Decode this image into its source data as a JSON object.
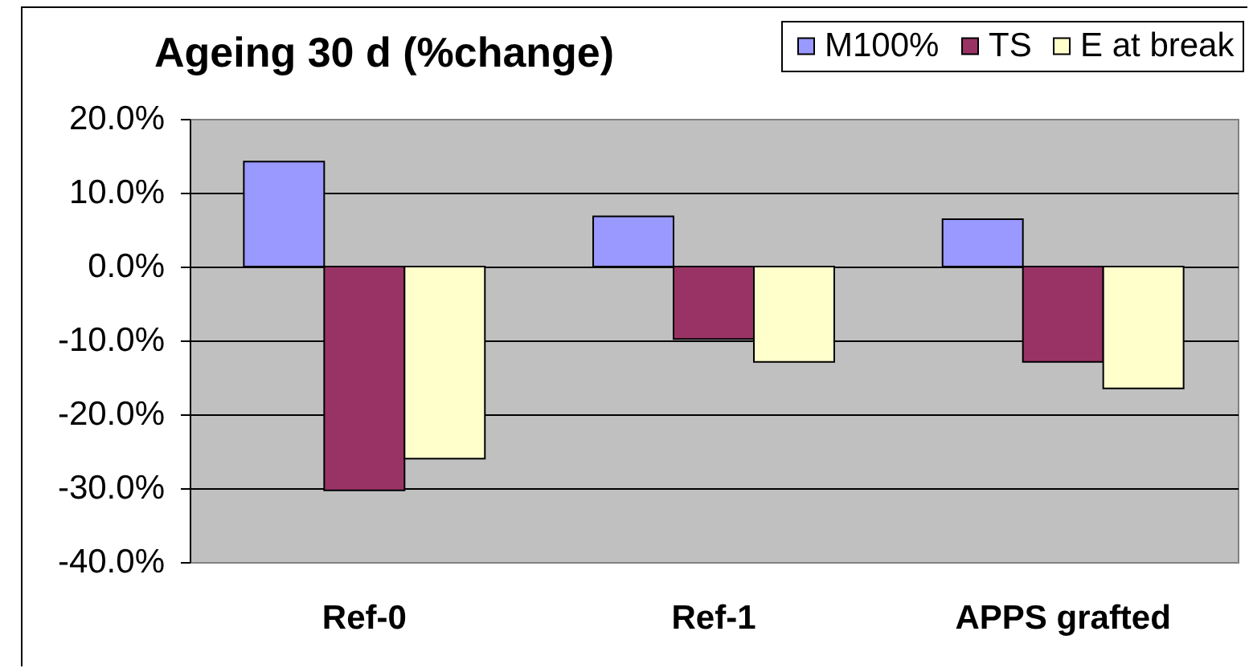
{
  "chart_data": {
    "type": "bar",
    "title": "Ageing 30 d (%change)",
    "categories": [
      "Ref-0",
      "Ref-1",
      "APPS grafted"
    ],
    "series": [
      {
        "name": "M100%",
        "color": "#9999ff",
        "values": [
          14.2,
          6.8,
          6.4
        ]
      },
      {
        "name": "TS",
        "color": "#993366",
        "values": [
          -30.3,
          -9.8,
          -12.9
        ]
      },
      {
        "name": "E at break",
        "color": "#ffffcc",
        "values": [
          -26.0,
          -12.9,
          -16.5
        ]
      }
    ],
    "ylim": [
      -40,
      20
    ],
    "yticks": [
      {
        "value": -40,
        "label": "-40.0%"
      },
      {
        "value": -30,
        "label": "-30.0%"
      },
      {
        "value": -20,
        "label": "-20.0%"
      },
      {
        "value": -10,
        "label": "-10.0%"
      },
      {
        "value": 0,
        "label": "0.0%"
      },
      {
        "value": 10,
        "label": "10.0%"
      },
      {
        "value": 20,
        "label": "20.0%"
      }
    ],
    "grid": "y",
    "legend": "top right"
  }
}
